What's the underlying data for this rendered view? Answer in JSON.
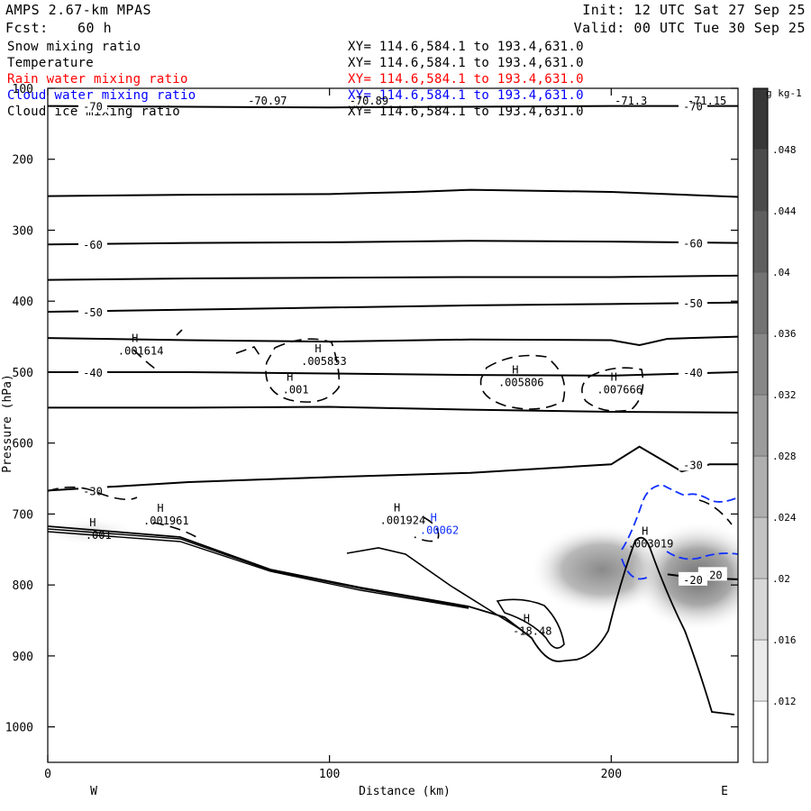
{
  "header": {
    "model": "AMPS 2.67-km MPAS",
    "fcst_label": "Fcst:",
    "fcst_value": "60 h",
    "init": "Init: 12 UTC Sat 27 Sep 25",
    "valid": "Valid: 00 UTC Tue 30 Sep 25"
  },
  "fields": [
    {
      "name": "Snow mixing ratio",
      "xy": "XY= 114.6,584.1 to 193.4,631.0",
      "color": "#000000"
    },
    {
      "name": "Temperature",
      "xy": "XY= 114.6,584.1 to 193.4,631.0",
      "color": "#000000"
    },
    {
      "name": "Rain water mixing ratio",
      "xy": "XY= 114.6,584.1 to 193.4,631.0",
      "color": "#ff0000"
    },
    {
      "name": "Cloud water mixing ratio",
      "xy": "XY= 114.6,584.1 to 193.4,631.0",
      "color": "#0000ff"
    },
    {
      "name": "Cloud ice mixing ratio",
      "xy": "XY= 114.6,584.1 to 193.4,631.0",
      "color": "#000000"
    }
  ],
  "chart_data": {
    "type": "contour",
    "xlabel": "Distance (km)",
    "ylabel": "Pressure (hPa)",
    "x_ticks": [
      0,
      100,
      200
    ],
    "y_ticks": [
      100,
      200,
      300,
      400,
      500,
      600,
      700,
      800,
      900,
      1000
    ],
    "xlim": [
      0,
      245
    ],
    "ylim": [
      1050,
      100
    ],
    "side_labels": {
      "left": "W",
      "right": "E"
    },
    "colorbar": {
      "unit": "g kg-1",
      "levels": [
        0.012,
        0.016,
        0.02,
        0.024,
        0.028,
        0.032,
        0.036,
        0.04,
        0.044,
        0.048
      ],
      "tick_labels": [
        ".012",
        ".016",
        ".02",
        ".024",
        ".028",
        ".032",
        ".036",
        ".04",
        ".044",
        ".048"
      ]
    },
    "temperature_contours": [
      {
        "label": "-70",
        "points": [
          [
            0,
            125
          ],
          [
            50,
            126
          ],
          [
            100,
            127
          ],
          [
            150,
            126
          ],
          [
            200,
            125
          ],
          [
            245,
            125
          ]
        ]
      },
      {
        "label": "",
        "points": [
          [
            0,
            252
          ],
          [
            50,
            250
          ],
          [
            100,
            249
          ],
          [
            130,
            246
          ],
          [
            150,
            243
          ],
          [
            200,
            246
          ],
          [
            245,
            253
          ]
        ]
      },
      {
        "label": "-60",
        "points": [
          [
            0,
            320
          ],
          [
            50,
            318
          ],
          [
            100,
            317
          ],
          [
            150,
            315
          ],
          [
            200,
            316
          ],
          [
            245,
            318
          ]
        ]
      },
      {
        "label": "",
        "points": [
          [
            0,
            370
          ],
          [
            50,
            368
          ],
          [
            100,
            367
          ],
          [
            150,
            366
          ],
          [
            200,
            366
          ],
          [
            245,
            364
          ]
        ]
      },
      {
        "label": "-50",
        "points": [
          [
            0,
            415
          ],
          [
            50,
            412
          ],
          [
            100,
            409
          ],
          [
            150,
            406
          ],
          [
            200,
            404
          ],
          [
            245,
            402
          ]
        ]
      },
      {
        "label": "",
        "points": [
          [
            0,
            452
          ],
          [
            50,
            455
          ],
          [
            100,
            457
          ],
          [
            150,
            454
          ],
          [
            200,
            455
          ],
          [
            210,
            462
          ],
          [
            220,
            453
          ],
          [
            245,
            450
          ]
        ]
      },
      {
        "label": "-40",
        "points": [
          [
            0,
            500
          ],
          [
            50,
            500
          ],
          [
            100,
            502
          ],
          [
            150,
            504
          ],
          [
            200,
            505
          ],
          [
            245,
            500
          ]
        ]
      },
      {
        "label": "",
        "points": [
          [
            0,
            550
          ],
          [
            50,
            550
          ],
          [
            100,
            549
          ],
          [
            150,
            553
          ],
          [
            200,
            556
          ],
          [
            245,
            557
          ]
        ]
      },
      {
        "label": "-30",
        "points": [
          [
            0,
            667
          ],
          [
            50,
            655
          ],
          [
            100,
            648
          ],
          [
            150,
            642
          ],
          [
            200,
            630
          ],
          [
            210,
            605
          ],
          [
            225,
            640
          ],
          [
            235,
            630
          ],
          [
            245,
            630
          ]
        ]
      },
      {
        "label": "-20",
        "points": [
          [
            220,
            785
          ],
          [
            230,
            790
          ],
          [
            245,
            792
          ]
        ]
      }
    ],
    "extrema": [
      {
        "label": ".001614",
        "x": 33,
        "y": 475
      },
      {
        "label": ".005853",
        "x": 98,
        "y": 490
      },
      {
        "label": ".001",
        "x": 88,
        "y": 530
      },
      {
        "label": ".005806",
        "x": 168,
        "y": 520
      },
      {
        "label": ".007666",
        "x": 203,
        "y": 530
      },
      {
        "label": ".001961",
        "x": 42,
        "y": 715
      },
      {
        "label": ".001",
        "x": 18,
        "y": 735
      },
      {
        "label": ".001924",
        "x": 126,
        "y": 714
      },
      {
        "label": ".00062",
        "x": 139,
        "y": 728
      },
      {
        "label": ".003019",
        "x": 214,
        "y": 747
      },
      {
        "label": "-18.48",
        "x": 172,
        "y": 870
      }
    ],
    "top_values": [
      {
        "label": "-70.97",
        "x": 78
      },
      {
        "label": "-70.89",
        "x": 114
      },
      {
        "label": "-71.3",
        "x": 207
      },
      {
        "label": "-71.15",
        "x": 234
      }
    ]
  }
}
